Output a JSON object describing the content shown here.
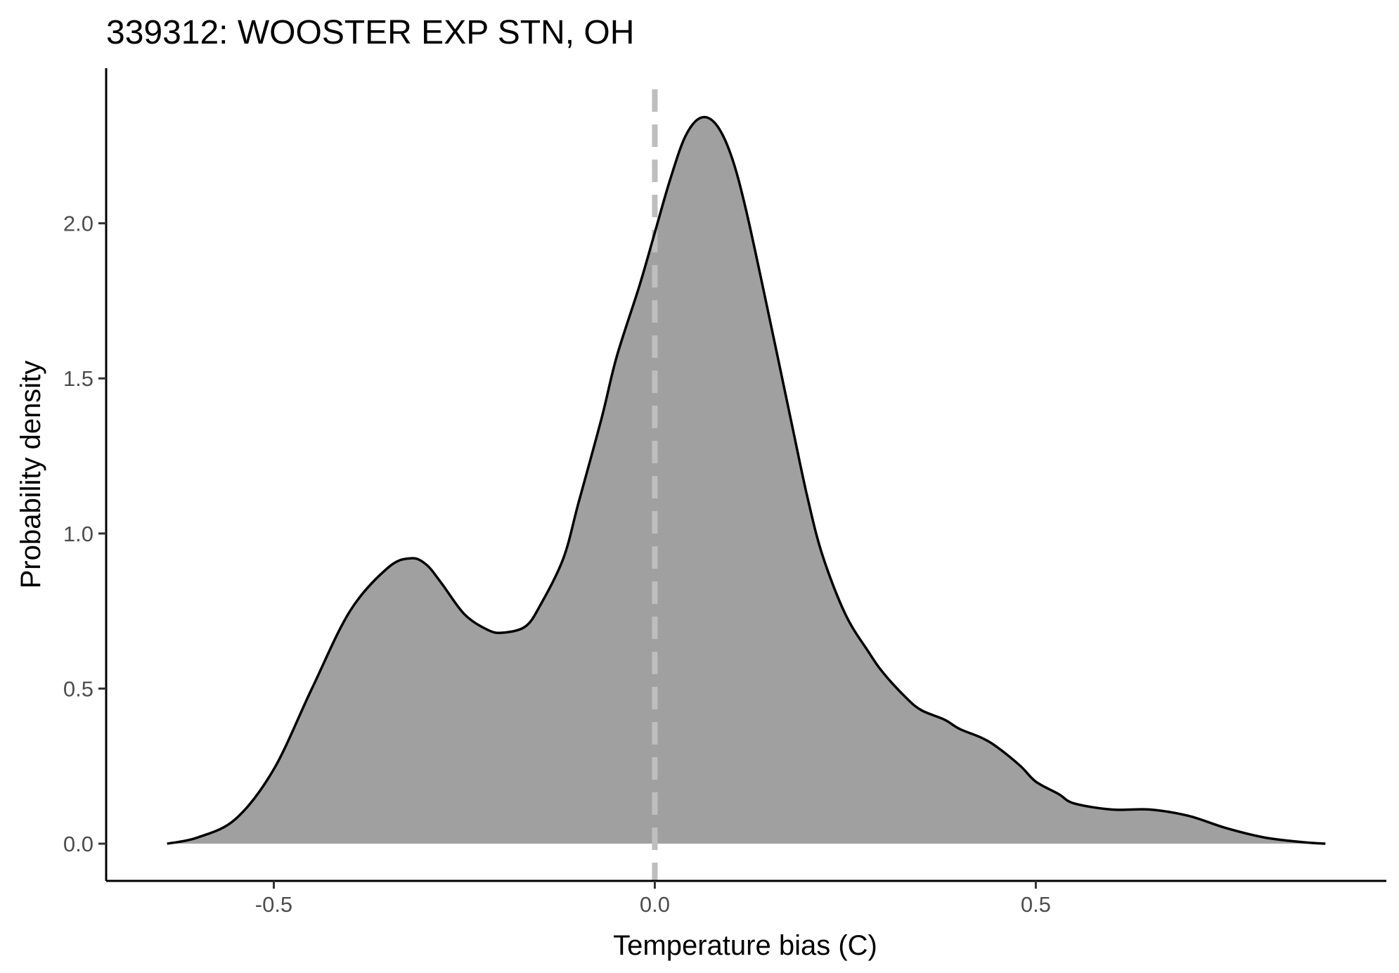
{
  "chart_data": {
    "type": "area",
    "title": "339312: WOOSTER EXP STN, OH",
    "xlabel": "Temperature bias (C)",
    "ylabel": "Probability density",
    "xlim": [
      -0.72,
      0.96
    ],
    "ylim": [
      -0.12,
      2.5
    ],
    "x_ticks": [
      {
        "value": -0.5,
        "label": "-0.5"
      },
      {
        "value": 0.0,
        "label": "0.0"
      },
      {
        "value": 0.5,
        "label": "0.5"
      }
    ],
    "y_ticks": [
      {
        "value": 0.0,
        "label": "0.0"
      },
      {
        "value": 0.5,
        "label": "0.5"
      },
      {
        "value": 1.0,
        "label": "1.0"
      },
      {
        "value": 1.5,
        "label": "1.5"
      },
      {
        "value": 2.0,
        "label": "2.0"
      }
    ],
    "reference_line": {
      "x": 0.0,
      "style": "dashed",
      "color": "#bebebe"
    },
    "fill_color": "#a0a0a0",
    "line_color": "#000000",
    "grid": false,
    "series": [
      {
        "x": [
          -0.64,
          -0.6,
          -0.55,
          -0.5,
          -0.45,
          -0.4,
          -0.35,
          -0.32,
          -0.3,
          -0.28,
          -0.25,
          -0.22,
          -0.2,
          -0.17,
          -0.15,
          -0.12,
          -0.1,
          -0.07,
          -0.05,
          -0.02,
          0.0,
          0.02,
          0.04,
          0.06,
          0.08,
          0.1,
          0.12,
          0.15,
          0.18,
          0.2,
          0.22,
          0.25,
          0.28,
          0.3,
          0.33,
          0.35,
          0.38,
          0.4,
          0.43,
          0.45,
          0.48,
          0.5,
          0.53,
          0.55,
          0.6,
          0.65,
          0.7,
          0.75,
          0.8,
          0.85,
          0.88
        ],
        "y": [
          0.0,
          0.02,
          0.08,
          0.24,
          0.5,
          0.75,
          0.89,
          0.92,
          0.9,
          0.84,
          0.74,
          0.69,
          0.68,
          0.7,
          0.77,
          0.92,
          1.1,
          1.37,
          1.57,
          1.8,
          1.97,
          2.14,
          2.28,
          2.34,
          2.32,
          2.22,
          2.04,
          1.7,
          1.35,
          1.12,
          0.93,
          0.74,
          0.62,
          0.55,
          0.47,
          0.43,
          0.4,
          0.37,
          0.34,
          0.31,
          0.25,
          0.2,
          0.16,
          0.13,
          0.11,
          0.11,
          0.09,
          0.05,
          0.02,
          0.005,
          0.0
        ]
      }
    ]
  }
}
